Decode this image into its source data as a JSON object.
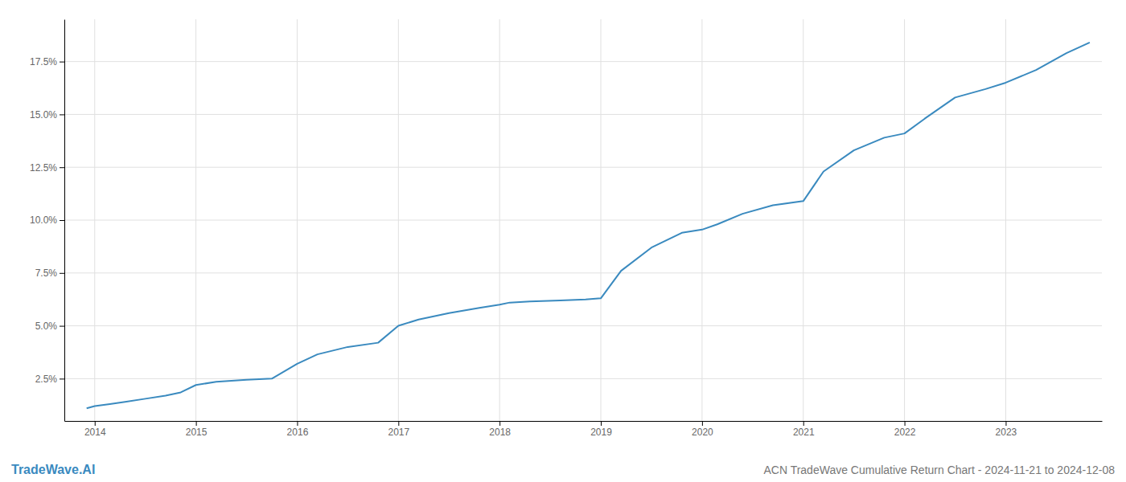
{
  "chart_data": {
    "type": "line",
    "title": "ACN TradeWave Cumulative Return Chart - 2024-11-21 to 2024-12-08",
    "annotations": [
      "TradeWave.AI"
    ],
    "color": "#3a8abf",
    "x": [
      2013.92,
      2014.0,
      2014.15,
      2014.3,
      2014.5,
      2014.7,
      2014.85,
      2015.0,
      2015.2,
      2015.5,
      2015.75,
      2016.0,
      2016.2,
      2016.5,
      2016.8,
      2017.0,
      2017.2,
      2017.5,
      2017.8,
      2018.0,
      2018.1,
      2018.3,
      2018.6,
      2018.85,
      2019.0,
      2019.2,
      2019.5,
      2019.8,
      2020.0,
      2020.15,
      2020.4,
      2020.7,
      2021.0,
      2021.2,
      2021.5,
      2021.8,
      2022.0,
      2022.2,
      2022.5,
      2022.8,
      2023.0,
      2023.3,
      2023.6,
      2023.83
    ],
    "values": [
      1.1,
      1.2,
      1.3,
      1.4,
      1.55,
      1.7,
      1.85,
      2.2,
      2.35,
      2.45,
      2.5,
      3.2,
      3.65,
      4.0,
      4.2,
      5.0,
      5.3,
      5.6,
      5.85,
      6.0,
      6.1,
      6.15,
      6.2,
      6.25,
      6.3,
      7.6,
      8.7,
      9.4,
      9.55,
      9.8,
      10.3,
      10.7,
      10.9,
      12.3,
      13.3,
      13.9,
      14.1,
      14.8,
      15.8,
      16.2,
      16.5,
      17.1,
      17.9,
      18.4
    ],
    "xlim": [
      2013.7,
      2023.95
    ],
    "xticks": [
      2014,
      2015,
      2016,
      2017,
      2018,
      2019,
      2020,
      2021,
      2022,
      2023
    ],
    "ylim": [
      0.5,
      19.5
    ],
    "yticks": [
      {
        "value": 2.5,
        "label": "2.5%"
      },
      {
        "value": 5.0,
        "label": "5.0%"
      },
      {
        "value": 7.5,
        "label": "7.5%"
      },
      {
        "value": 10.0,
        "label": "10.0%"
      },
      {
        "value": 12.5,
        "label": "12.5%"
      },
      {
        "value": 15.0,
        "label": "15.0%"
      },
      {
        "value": 17.5,
        "label": "17.5%"
      }
    ],
    "grid": true
  }
}
